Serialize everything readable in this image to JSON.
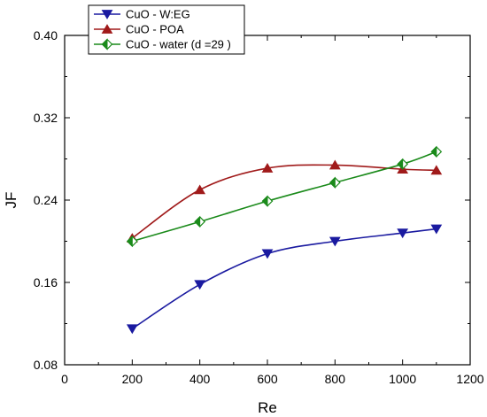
{
  "chart_data": {
    "type": "line",
    "xlabel": "Re",
    "ylabel": "JF",
    "xlim": [
      0,
      1200
    ],
    "ylim": [
      0.08,
      0.4
    ],
    "xticks": [
      0,
      200,
      400,
      600,
      800,
      1000,
      1200
    ],
    "yticks": [
      0.08,
      0.16,
      0.24,
      0.32,
      0.4
    ],
    "xtick_labels": [
      "0",
      "200",
      "400",
      "600",
      "800",
      "1000",
      "1200"
    ],
    "ytick_labels": [
      "0.08",
      "0.16",
      "0.24",
      "0.32",
      "0.40"
    ],
    "grid": false,
    "legend_position": "top-left",
    "series": [
      {
        "name": "CuO - W:EG",
        "color": "#1a1aa0",
        "marker": "triangle-down",
        "x": [
          200,
          400,
          600,
          800,
          1000,
          1100
        ],
        "values": [
          0.115,
          0.158,
          0.188,
          0.2,
          0.208,
          0.212
        ]
      },
      {
        "name": "CuO - POA",
        "color": "#a01a1a",
        "marker": "triangle-up",
        "x": [
          200,
          400,
          600,
          800,
          1000,
          1100
        ],
        "values": [
          0.203,
          0.25,
          0.271,
          0.274,
          0.27,
          0.269
        ]
      },
      {
        "name": "CuO - water (d =29 )",
        "color": "#1a8a1a",
        "marker": "half-diamond",
        "x": [
          200,
          400,
          600,
          800,
          1000,
          1100
        ],
        "values": [
          0.2,
          0.219,
          0.239,
          0.257,
          0.275,
          0.287
        ]
      }
    ]
  }
}
